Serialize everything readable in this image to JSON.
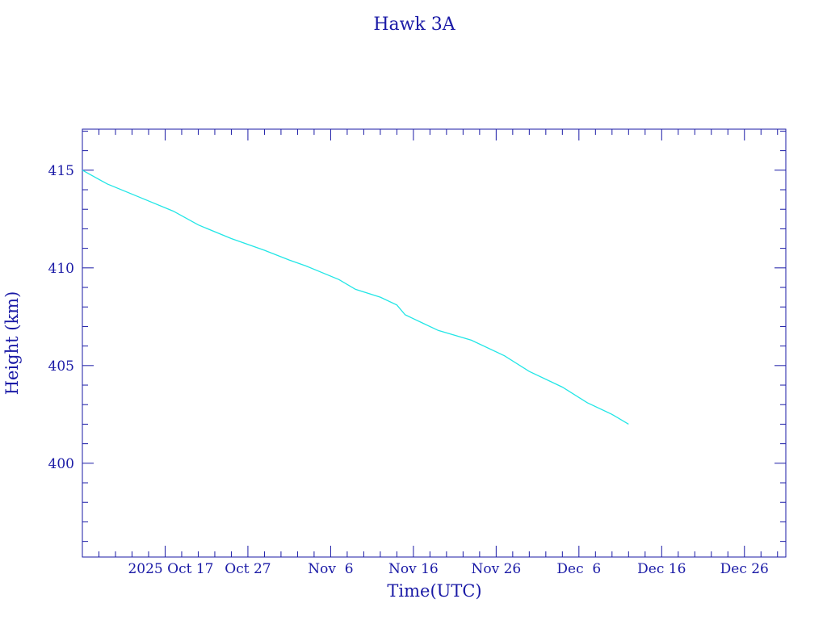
{
  "chart_data": {
    "type": "line",
    "title": "Hawk 3A",
    "xlabel": "Time(UTC)",
    "ylabel": "Height (km)",
    "x_unit": "date",
    "xlim": [
      "2025-10-07",
      "2025-12-31"
    ],
    "ylim": [
      395.2,
      417.1
    ],
    "x_tick_dates": [
      "2025-10-17",
      "2025-10-27",
      "2025-11-06",
      "2025-11-16",
      "2025-11-26",
      "2025-12-06",
      "2025-12-16",
      "2025-12-26"
    ],
    "x_tick_labels": [
      "2025 Oct 17",
      "Oct 27",
      "Nov  6",
      "Nov 16",
      "Nov 26",
      "Dec  6",
      "Dec 16",
      "Dec 26"
    ],
    "y_ticks": [
      400,
      405,
      410,
      415
    ],
    "y_tick_labels": [
      "400",
      "405",
      "410",
      "415"
    ],
    "grid": false,
    "line_color": "#22e6e6",
    "axis_color": "#1a1aa6",
    "series": [
      {
        "x": [
          "2025-10-07",
          "2025-10-10",
          "2025-10-14",
          "2025-10-18",
          "2025-10-21",
          "2025-10-25",
          "2025-10-29",
          "2025-11-01",
          "2025-11-03",
          "2025-11-07",
          "2025-11-09",
          "2025-11-12",
          "2025-11-14",
          "2025-11-15",
          "2025-11-17",
          "2025-11-19",
          "2025-11-23",
          "2025-11-27",
          "2025-11-30",
          "2025-12-04",
          "2025-12-07",
          "2025-12-10",
          "2025-12-12"
        ],
        "y": [
          415.0,
          414.3,
          413.6,
          412.9,
          412.2,
          411.5,
          410.9,
          410.4,
          410.1,
          409.4,
          408.9,
          408.5,
          408.1,
          407.6,
          407.2,
          406.8,
          406.3,
          405.5,
          404.7,
          403.9,
          403.1,
          402.5,
          402.0
        ]
      }
    ]
  }
}
